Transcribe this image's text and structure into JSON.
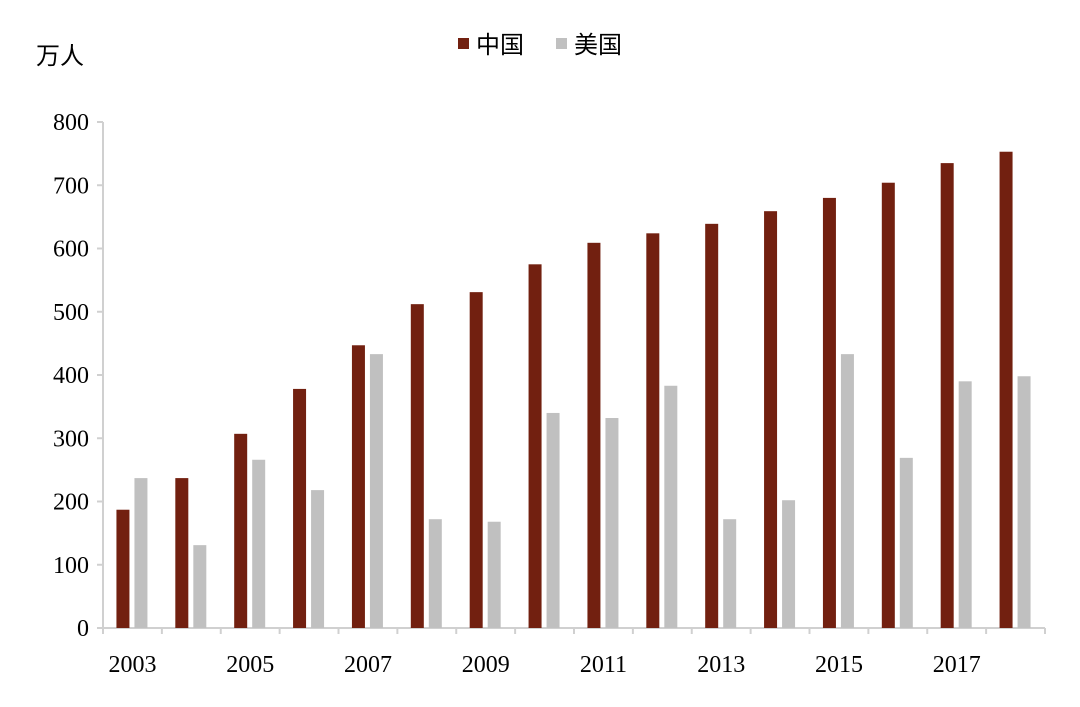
{
  "chart_data": {
    "type": "bar",
    "title": "",
    "xlabel": "",
    "ylabel": "万人",
    "ylim": [
      0,
      800
    ],
    "yticks": [
      0,
      100,
      200,
      300,
      400,
      500,
      600,
      700,
      800
    ],
    "grid": false,
    "legend_position": "top-center",
    "categories": [
      "2003",
      "2004",
      "2005",
      "2006",
      "2007",
      "2008",
      "2009",
      "2010",
      "2011",
      "2012",
      "2013",
      "2014",
      "2015",
      "2016",
      "2017",
      "2018"
    ],
    "xtick_labels": [
      "2003",
      "",
      "2005",
      "",
      "2007",
      "",
      "2009",
      "",
      "2011",
      "",
      "2013",
      "",
      "2015",
      "",
      "2017",
      ""
    ],
    "series": [
      {
        "name": "中国",
        "color": "#722010",
        "values": [
          187,
          237,
          307,
          378,
          447,
          512,
          531,
          575,
          609,
          624,
          639,
          659,
          680,
          704,
          735,
          753
        ]
      },
      {
        "name": "美国",
        "color": "#c0c0c0",
        "values": [
          237,
          131,
          266,
          218,
          433,
          172,
          168,
          340,
          332,
          383,
          172,
          202,
          433,
          269,
          390,
          398
        ]
      }
    ]
  }
}
